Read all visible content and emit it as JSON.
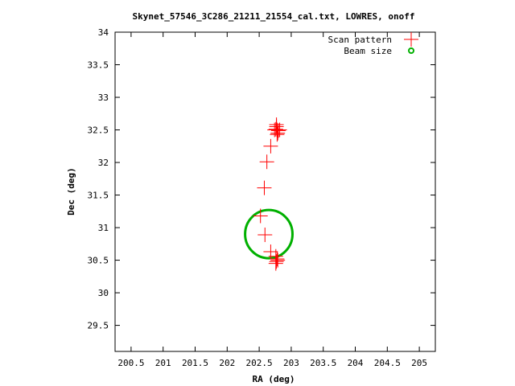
{
  "chart_data": {
    "type": "scatter",
    "title": "Skynet_57546_3C286_21211_21554_cal.txt, LOWRES, onoff",
    "xlabel": "RA (deg)",
    "ylabel": "Dec (deg)",
    "xlim": [
      200.25,
      205.25
    ],
    "ylim": [
      29.1,
      34
    ],
    "xticks": [
      200.5,
      201,
      201.5,
      202,
      202.5,
      203,
      203.5,
      204,
      204.5,
      205
    ],
    "yticks": [
      29.5,
      30,
      30.5,
      31,
      31.5,
      32,
      32.5,
      33,
      33.5,
      34
    ],
    "xtick_labels": [
      "200.5",
      "201",
      "201.5",
      "202",
      "202.5",
      "203",
      "203.5",
      "204",
      "204.5",
      "205"
    ],
    "ytick_labels": [
      "29.5",
      "30",
      "30.5",
      "31",
      "31.5",
      "32",
      "32.5",
      "33",
      "33.5",
      "34"
    ],
    "legend_position": "top-right",
    "grid": false,
    "series": [
      {
        "name": "Scan pattern",
        "marker": "plus",
        "color": "#ff0000",
        "points": [
          [
            202.78,
            32.5
          ],
          [
            202.76,
            32.51
          ],
          [
            202.8,
            32.49
          ],
          [
            202.77,
            32.55
          ],
          [
            202.79,
            32.45
          ],
          [
            202.74,
            32.5
          ],
          [
            202.82,
            32.5
          ],
          [
            202.78,
            32.43
          ],
          [
            202.77,
            32.58
          ],
          [
            202.68,
            32.25
          ],
          [
            202.62,
            32.01
          ],
          [
            202.58,
            31.61
          ],
          [
            202.52,
            31.18
          ],
          [
            202.59,
            30.89
          ],
          [
            202.68,
            30.63
          ],
          [
            202.76,
            30.56
          ],
          [
            202.78,
            30.52
          ],
          [
            202.77,
            30.48
          ],
          [
            202.79,
            30.5
          ],
          [
            202.76,
            30.45
          ]
        ]
      },
      {
        "name": "Beam size",
        "marker": "circle",
        "color": "#00b000",
        "center": [
          202.65,
          30.9
        ],
        "radius_deg": 0.37
      }
    ]
  }
}
